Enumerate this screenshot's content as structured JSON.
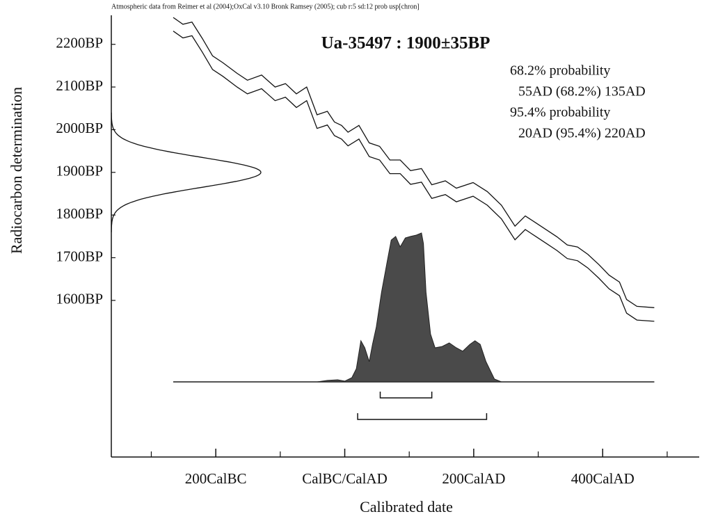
{
  "chart_data": {
    "type": "calibration",
    "header": "Atmospheric data from Reimer et al (2004);OxCal v3.10 Bronk Ramsey (2005); cub r:5 sd:12 prob usp[chron]",
    "title": "Ua-35497 : 1900±35BP",
    "x_label": "Calibrated date",
    "y_label": "Radiocarbon determination",
    "xlim": [
      -362,
      554
    ],
    "ylim": [
      1233,
      2268
    ],
    "xticks": [
      {
        "value": -200,
        "label": "200CalBC"
      },
      {
        "value": 0,
        "label": "CalBC/CalAD"
      },
      {
        "value": 200,
        "label": "200CalAD"
      },
      {
        "value": 400,
        "label": "400CalAD"
      }
    ],
    "x_minor_ticks": [
      -300,
      -100,
      100,
      300,
      500
    ],
    "yticks": [
      {
        "value": 2200,
        "label": "2200BP"
      },
      {
        "value": 2100,
        "label": "2100BP"
      },
      {
        "value": 2000,
        "label": "2000BP"
      },
      {
        "value": 1900,
        "label": "1900BP"
      },
      {
        "value": 1800,
        "label": "1800BP"
      },
      {
        "value": 1700,
        "label": "1700BP"
      },
      {
        "value": 1600,
        "label": "1600BP"
      }
    ],
    "measurement": {
      "mean": 1900,
      "sd": 35
    },
    "curve": {
      "x": [
        -266,
        -251,
        -237,
        -221,
        -205,
        -189,
        -167,
        -151,
        -129,
        -108,
        -92,
        -75,
        -59,
        -43,
        -27,
        -16,
        -5,
        5,
        22,
        38,
        54,
        70,
        86,
        102,
        119,
        135,
        156,
        173,
        199,
        221,
        243,
        264,
        280,
        296,
        313,
        329,
        345,
        361,
        377,
        394,
        410,
        426,
        437,
        453,
        480
      ],
      "upper": [
        2263,
        2247,
        2252,
        2214,
        2173,
        2157,
        2132,
        2116,
        2128,
        2100,
        2108,
        2084,
        2100,
        2035,
        2043,
        2018,
        2010,
        1994,
        2010,
        1969,
        1961,
        1929,
        1929,
        1904,
        1909,
        1871,
        1880,
        1863,
        1876,
        1855,
        1823,
        1774,
        1798,
        1782,
        1765,
        1749,
        1730,
        1725,
        1708,
        1684,
        1659,
        1643,
        1602,
        1586,
        1583
      ],
      "lower": [
        2231,
        2215,
        2220,
        2182,
        2141,
        2125,
        2100,
        2084,
        2096,
        2068,
        2076,
        2052,
        2068,
        2003,
        2011,
        1986,
        1978,
        1962,
        1978,
        1937,
        1929,
        1897,
        1897,
        1872,
        1877,
        1839,
        1848,
        1831,
        1844,
        1823,
        1791,
        1742,
        1766,
        1750,
        1733,
        1717,
        1698,
        1693,
        1676,
        1652,
        1627,
        1611,
        1570,
        1554,
        1551
      ]
    },
    "probability": {
      "x": [
        -266,
        -43,
        -27,
        -11,
        0,
        11,
        18,
        25,
        31,
        38,
        43,
        49,
        57,
        65,
        72,
        79,
        86,
        94,
        102,
        111,
        119,
        122,
        126,
        133,
        140,
        151,
        162,
        173,
        183,
        194,
        202,
        210,
        219,
        232,
        243,
        480
      ],
      "values": [
        0,
        0,
        0.01,
        0.014,
        0.005,
        0.028,
        0.089,
        0.276,
        0.229,
        0.136,
        0.252,
        0.369,
        0.603,
        0.79,
        0.953,
        0.977,
        0.907,
        0.967,
        0.977,
        0.986,
        1,
        0.93,
        0.603,
        0.322,
        0.229,
        0.238,
        0.262,
        0.229,
        0.206,
        0.252,
        0.276,
        0.252,
        0.136,
        0.019,
        0,
        0
      ],
      "color": "#4a4a4a"
    },
    "ranges": [
      {
        "label": "68.2% probability",
        "text": "55AD (68.2%) 135AD",
        "from": 55,
        "to": 135
      },
      {
        "label": "95.4% probability",
        "text": "20AD (95.4%) 220AD",
        "from": 20,
        "to": 220
      }
    ]
  }
}
